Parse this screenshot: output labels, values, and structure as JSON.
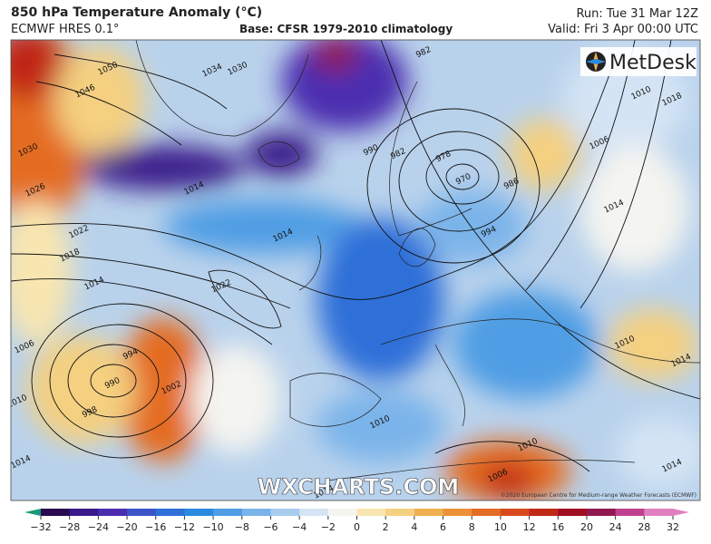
{
  "header": {
    "title": "850 hPa Temperature Anomaly (°C)",
    "model": "ECMWF HRES 0.1°",
    "base": "Base: CFSR 1979-2010 climatology",
    "run": "Run: Tue 31 Mar 12Z",
    "valid": "Valid: Fri 3 Apr 00:00 UTC"
  },
  "map": {
    "logo": "MetDesk",
    "watermark": "WXCHARTS.COM",
    "copyright": "©2020 European Centre for Medium-range Weather Forecasts (ECMWF)",
    "isobar_labels": [
      "1050",
      "1046",
      "1034",
      "1030",
      "1026",
      "1022",
      "1018",
      "1014",
      "1006",
      "1010",
      "1014",
      "994",
      "990",
      "998",
      "1002",
      "1022",
      "1014",
      "1014",
      "1030",
      "982",
      "990",
      "982",
      "978",
      "970",
      "986",
      "994",
      "1006",
      "1014",
      "1010",
      "1018",
      "1010",
      "1014",
      "1010",
      "1006",
      "1010",
      "1014",
      "1014"
    ]
  },
  "colorbar": {
    "ticks": [
      "−32",
      "−28",
      "−24",
      "−20",
      "−16",
      "−12",
      "−10",
      "−8",
      "−6",
      "−4",
      "−2",
      "0",
      "2",
      "4",
      "6",
      "8",
      "10",
      "12",
      "16",
      "20",
      "24",
      "28",
      "32"
    ],
    "colors": [
      "#1a9a7a",
      "#2a0a50",
      "#3a1a8a",
      "#4b2db0",
      "#3b55c8",
      "#2f6fd8",
      "#2a8ae0",
      "#4f9de4",
      "#7ab4ea",
      "#a8cbee",
      "#d4e4f4",
      "#f4f4f0",
      "#f8e6b0",
      "#f4d080",
      "#f0b050",
      "#ec9038",
      "#e46c24",
      "#d84a1c",
      "#c02818",
      "#a01020",
      "#901a50",
      "#c04090",
      "#e080c0"
    ]
  }
}
